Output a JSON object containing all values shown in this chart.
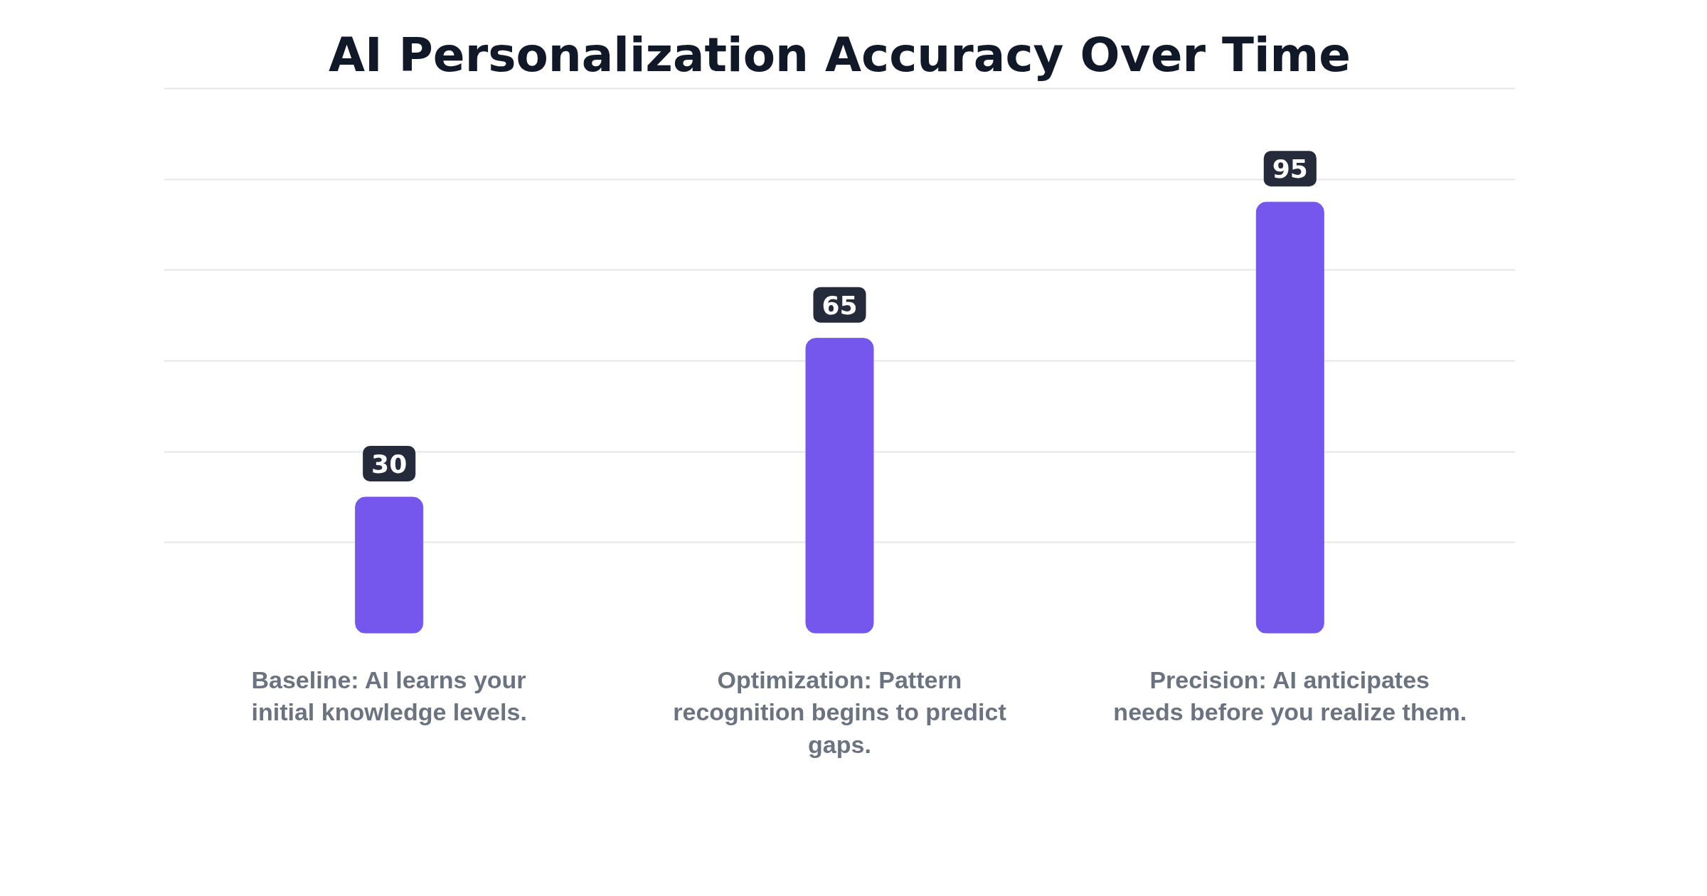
{
  "chart_data": {
    "type": "bar",
    "title": "AI Personalization Accuracy Over Time",
    "categories": [
      "Baseline: AI learns your initial knowledge levels.",
      "Optimization: Pattern recognition begins to predict gaps.",
      "Precision: AI anticipates needs before you realize them."
    ],
    "values": [
      30,
      65,
      95
    ],
    "color": "#7657ee",
    "data_labels": true,
    "tick_labels": "x",
    "grid": "y"
  }
}
